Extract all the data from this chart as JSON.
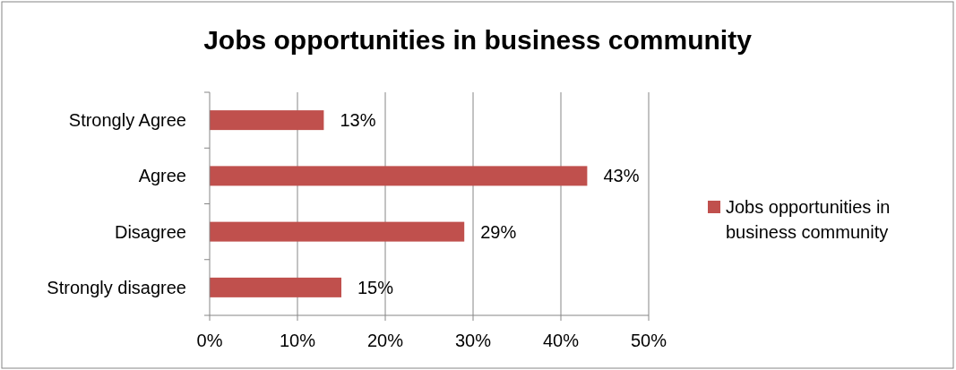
{
  "chart_data": {
    "type": "bar",
    "orientation": "horizontal",
    "title": "Jobs opportunities in business community",
    "categories": [
      "Strongly Agree",
      "Agree",
      "Disagree",
      "Strongly disagree"
    ],
    "series": [
      {
        "name": "Jobs opportunities in business community",
        "color": "#c0504d",
        "values": [
          13,
          43,
          29,
          15
        ],
        "value_labels": [
          "13%",
          "43%",
          "29%",
          "15%"
        ]
      }
    ],
    "xlim": [
      0,
      50
    ],
    "xticks": [
      {
        "value": 0,
        "label": "0%"
      },
      {
        "value": 10,
        "label": "10%"
      },
      {
        "value": 20,
        "label": "20%"
      },
      {
        "value": 30,
        "label": "30%"
      },
      {
        "value": 40,
        "label": "40%"
      },
      {
        "value": 50,
        "label": "50%"
      }
    ],
    "grid": "x",
    "legend": "right"
  }
}
